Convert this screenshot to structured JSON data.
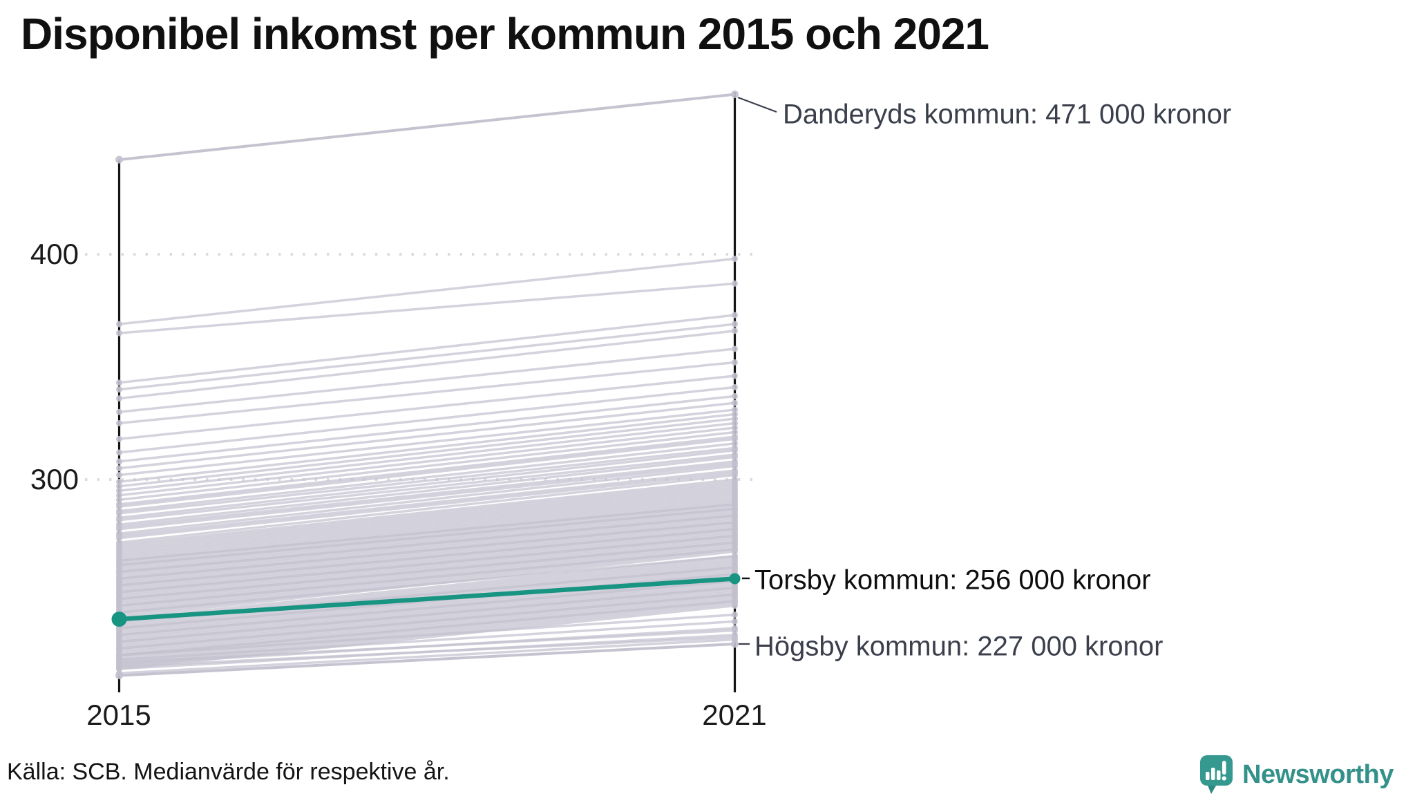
{
  "title": "Disponibel inkomst per kommun 2015 och 2021",
  "source": "Källa: SCB. Medianvärde för respektive år.",
  "logo": {
    "label": "Newsworthy",
    "icon": "bar-chart-speech-bubble-icon",
    "color": "#33918a"
  },
  "colors": {
    "highlight_teal": "#189483",
    "background_line_gray": "#c3c0ce",
    "annotation_text": "#3b3f4c",
    "axis_black": "#141414",
    "grid_gray": "#dcdcdc"
  },
  "chart_data": {
    "type": "line",
    "subtype": "slope-chart",
    "x_categories": [
      "2015",
      "2021"
    ],
    "y_ticks": [
      400,
      300
    ],
    "y_unit": "tusen kronor (000 kronor)",
    "ylim": [
      207,
      480
    ],
    "grid": "dotted horizontal at 300 and 400",
    "legend_position": "none",
    "annotations": [
      {
        "id": "danderyd",
        "label": "Danderyds kommun: 471 000 kronor",
        "value_2015": 442,
        "value_2021": 471,
        "highlight": false
      },
      {
        "id": "torsby",
        "label": "Torsby kommun: 256 000 kronor",
        "value_2015": 238,
        "value_2021": 256,
        "highlight": true
      },
      {
        "id": "hogsby",
        "label": "Högsby kommun: 227 000 kronor",
        "value_2015": 213,
        "value_2021": 227,
        "highlight": false
      }
    ],
    "background_series": [
      [
        369,
        398
      ],
      [
        365,
        387
      ],
      [
        343,
        373
      ],
      [
        340,
        369
      ],
      [
        336,
        366
      ],
      [
        330,
        358
      ],
      [
        325,
        352
      ],
      [
        318,
        346
      ],
      [
        312,
        341
      ],
      [
        308,
        337
      ],
      [
        305,
        334
      ],
      [
        302,
        331
      ],
      [
        299,
        329
      ],
      [
        297,
        327
      ],
      [
        295,
        325
      ],
      [
        293,
        323
      ],
      [
        291,
        321
      ],
      [
        289,
        319
      ],
      [
        288,
        318
      ],
      [
        286,
        316
      ],
      [
        285,
        314
      ],
      [
        283,
        313
      ],
      [
        282,
        311
      ],
      [
        280,
        310
      ],
      [
        279,
        308
      ],
      [
        278,
        307
      ],
      [
        276,
        306
      ],
      [
        275,
        304
      ],
      [
        274,
        303
      ],
      [
        272,
        302
      ],
      [
        271,
        300
      ],
      [
        270,
        299
      ],
      [
        269,
        298
      ],
      [
        268,
        297
      ],
      [
        267,
        296
      ],
      [
        266,
        295
      ],
      [
        265,
        294
      ],
      [
        264,
        293
      ],
      [
        264,
        289
      ],
      [
        263,
        292
      ],
      [
        262,
        291
      ],
      [
        262,
        287
      ],
      [
        261,
        290
      ],
      [
        260,
        289
      ],
      [
        259,
        288
      ],
      [
        259,
        284
      ],
      [
        258,
        287
      ],
      [
        257,
        286
      ],
      [
        256,
        285
      ],
      [
        256,
        281
      ],
      [
        255,
        284
      ],
      [
        254,
        283
      ],
      [
        253,
        282
      ],
      [
        253,
        278
      ],
      [
        252,
        281
      ],
      [
        251,
        280
      ],
      [
        250,
        279
      ],
      [
        250,
        275
      ],
      [
        249,
        278
      ],
      [
        248,
        277
      ],
      [
        247,
        276
      ],
      [
        247,
        272
      ],
      [
        246,
        275
      ],
      [
        245,
        274
      ],
      [
        244,
        273
      ],
      [
        244,
        269
      ],
      [
        243,
        272
      ],
      [
        242,
        271
      ],
      [
        241,
        270
      ],
      [
        241,
        266
      ],
      [
        240,
        269
      ],
      [
        239,
        268
      ],
      [
        238,
        266
      ],
      [
        237,
        265
      ],
      [
        237,
        261
      ],
      [
        236,
        264
      ],
      [
        235,
        263
      ],
      [
        234,
        262
      ],
      [
        234,
        258
      ],
      [
        233,
        261
      ],
      [
        232,
        260
      ],
      [
        231,
        259
      ],
      [
        231,
        255
      ],
      [
        230,
        258
      ],
      [
        229,
        257
      ],
      [
        228,
        256
      ],
      [
        228,
        252
      ],
      [
        227,
        255
      ],
      [
        226,
        254
      ],
      [
        225,
        253
      ],
      [
        225,
        249
      ],
      [
        224,
        252
      ],
      [
        223,
        251
      ],
      [
        222,
        250
      ],
      [
        222,
        246
      ],
      [
        221,
        249
      ],
      [
        220,
        248
      ],
      [
        219,
        247
      ],
      [
        218,
        246
      ],
      [
        217,
        245
      ],
      [
        216,
        244
      ],
      [
        222,
        240
      ],
      [
        220,
        237
      ],
      [
        218,
        234
      ],
      [
        216,
        231
      ],
      [
        214,
        229
      ],
      [
        219,
        233
      ],
      [
        217,
        230
      ]
    ]
  }
}
